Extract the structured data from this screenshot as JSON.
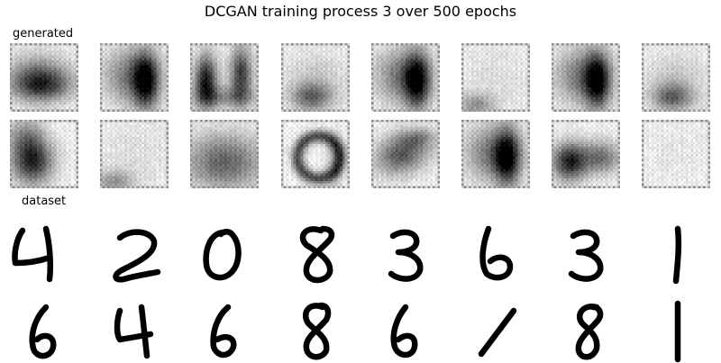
{
  "title": "DCGAN training process 3 over 500 epochs",
  "sections": {
    "generated_label": "generated",
    "dataset_label": "dataset"
  },
  "generated_samples": [
    {
      "row": 0,
      "col": 0,
      "shape": "dark-lower-block"
    },
    {
      "row": 0,
      "col": 1,
      "shape": "dark-right-block"
    },
    {
      "row": 0,
      "col": 2,
      "shape": "double-hump"
    },
    {
      "row": 0,
      "col": 3,
      "shape": "faint-bump"
    },
    {
      "row": 0,
      "col": 4,
      "shape": "dark-right-block"
    },
    {
      "row": 0,
      "col": 5,
      "shape": "faint-corner"
    },
    {
      "row": 0,
      "col": 6,
      "shape": "dark-right-block"
    },
    {
      "row": 0,
      "col": 7,
      "shape": "faint-bump"
    },
    {
      "row": 1,
      "col": 0,
      "shape": "dark-left-block"
    },
    {
      "row": 1,
      "col": 1,
      "shape": "faint-corner"
    },
    {
      "row": 1,
      "col": 2,
      "shape": "wide-block"
    },
    {
      "row": 1,
      "col": 3,
      "shape": "ring-blob"
    },
    {
      "row": 1,
      "col": 4,
      "shape": "slanted-block"
    },
    {
      "row": 1,
      "col": 5,
      "shape": "dark-right-block"
    },
    {
      "row": 1,
      "col": 6,
      "shape": "valley"
    },
    {
      "row": 1,
      "col": 7,
      "shape": "blank"
    }
  ],
  "dataset_digits": [
    {
      "row": 0,
      "col": 0,
      "digit": "4"
    },
    {
      "row": 0,
      "col": 1,
      "digit": "2"
    },
    {
      "row": 0,
      "col": 2,
      "digit": "0"
    },
    {
      "row": 0,
      "col": 3,
      "digit": "8"
    },
    {
      "row": 0,
      "col": 4,
      "digit": "3"
    },
    {
      "row": 0,
      "col": 5,
      "digit": "6"
    },
    {
      "row": 0,
      "col": 6,
      "digit": "3"
    },
    {
      "row": 0,
      "col": 7,
      "digit": "1"
    },
    {
      "row": 1,
      "col": 0,
      "digit": "6"
    },
    {
      "row": 1,
      "col": 1,
      "digit": "4"
    },
    {
      "row": 1,
      "col": 2,
      "digit": "6"
    },
    {
      "row": 1,
      "col": 3,
      "digit": "8"
    },
    {
      "row": 1,
      "col": 4,
      "digit": "6"
    },
    {
      "row": 1,
      "col": 5,
      "digit": "1"
    },
    {
      "row": 1,
      "col": 6,
      "digit": "8"
    },
    {
      "row": 1,
      "col": 7,
      "digit": "1"
    }
  ]
}
